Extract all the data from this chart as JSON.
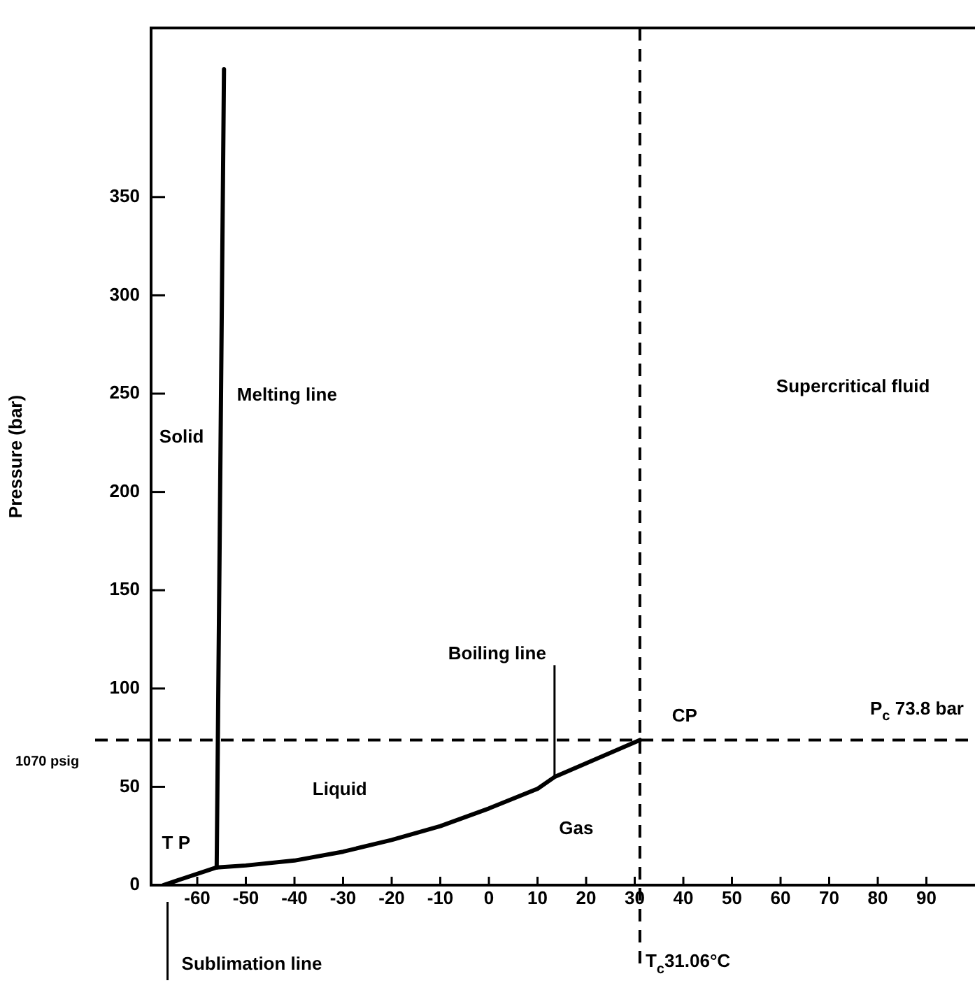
{
  "chart_data": {
    "type": "line",
    "ylabel": "Pressure (bar)",
    "xlim": [
      -69.5,
      100
    ],
    "xticks": [
      -60,
      -50,
      -40,
      -30,
      -20,
      -10,
      0,
      10,
      20,
      30,
      40,
      50,
      60,
      70,
      80,
      90
    ],
    "ylim": [
      0,
      436
    ],
    "yticks": [
      0,
      50,
      100,
      150,
      200,
      250,
      300,
      350
    ],
    "series": [
      {
        "color": "#000000",
        "x": [
          -56,
          -54.5
        ],
        "values": [
          9,
          415
        ]
      },
      {
        "color": "#000000",
        "x": [
          -67,
          -56,
          -50,
          -40,
          -30,
          -20,
          -10,
          0,
          10,
          13.5,
          20,
          31.06
        ],
        "values": [
          0,
          9,
          10,
          12.5,
          17,
          23,
          30,
          39,
          49,
          55,
          62,
          73.8
        ]
      }
    ],
    "ref_lines": [
      {
        "axis": "y",
        "value": 73.8,
        "label": "P$_{c}$ 73.8 bar",
        "color": "#000000",
        "line_style": "dashed"
      },
      {
        "axis": "x",
        "value": 31.06,
        "label": "T$_{c}$31.06°C",
        "color": "#000000",
        "line_style": "dashed"
      }
    ],
    "annotations": [
      "Solid",
      "Melting line",
      "Liquid",
      "Gas",
      "Supercritical fluid",
      {
        "text": "Boiling line",
        "x": 13.5,
        "y": 55
      },
      "Sublimation line",
      {
        "text": "CP",
        "x": 31.06,
        "y": 73.8
      },
      {
        "text": "T P",
        "x": -56,
        "y": 9
      },
      "1070 psig"
    ],
    "grid": false,
    "legend": false,
    "marker": "none",
    "line_style": "solid"
  }
}
